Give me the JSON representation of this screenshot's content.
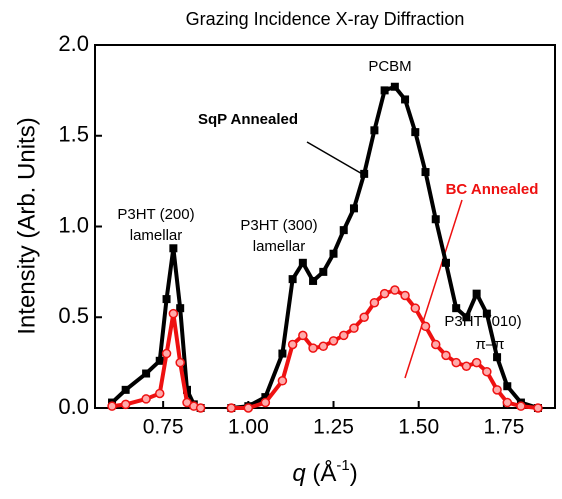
{
  "chart_data": {
    "type": "line",
    "title": "Grazing Incidence X-ray Diffraction",
    "xlabel": [
      "q",
      " (Å",
      "-1",
      ")"
    ],
    "ylabel": "Intensity (Arb. Units)",
    "x": [
      0.6,
      0.64,
      0.7,
      0.74,
      0.76,
      0.78,
      0.8,
      0.82,
      0.84,
      0.86,
      0.9,
      0.95,
      1.0,
      1.05,
      1.1,
      1.13,
      1.16,
      1.19,
      1.22,
      1.25,
      1.28,
      1.31,
      1.34,
      1.37,
      1.4,
      1.43,
      1.46,
      1.49,
      1.52,
      1.55,
      1.58,
      1.61,
      1.64,
      1.67,
      1.7,
      1.73,
      1.76,
      1.8,
      1.85
    ],
    "series": [
      {
        "name": "SqP Annealed",
        "color": "#000000",
        "marker": "square",
        "values": [
          0.03,
          0.1,
          0.19,
          0.26,
          0.6,
          0.88,
          0.55,
          0.1,
          0.02,
          0.0,
          null,
          0.0,
          0.01,
          0.06,
          0.3,
          0.71,
          0.8,
          0.7,
          0.75,
          0.85,
          0.98,
          1.1,
          1.29,
          1.53,
          1.75,
          1.77,
          1.7,
          1.52,
          1.3,
          1.04,
          0.8,
          0.55,
          0.5,
          0.63,
          0.52,
          0.28,
          0.12,
          0.03,
          0.0
        ]
      },
      {
        "name": "BC Annealed",
        "color": "#ee1111",
        "marker": "circle",
        "values": [
          0.01,
          0.02,
          0.05,
          0.08,
          0.3,
          0.52,
          0.25,
          0.03,
          0.01,
          0.0,
          null,
          0.0,
          0.0,
          0.03,
          0.15,
          0.35,
          0.4,
          0.33,
          0.34,
          0.37,
          0.4,
          0.44,
          0.5,
          0.58,
          0.63,
          0.65,
          0.62,
          0.55,
          0.45,
          0.35,
          0.29,
          0.25,
          0.23,
          0.25,
          0.2,
          0.1,
          0.03,
          0.01,
          0.0
        ]
      }
    ],
    "annotations": [
      "PCBM",
      "P3HT (200)",
      "lamellar",
      "P3HT (300)",
      "lamellar",
      "P3HT (010)",
      "π–π"
    ],
    "xlim": [
      0.55,
      1.9
    ],
    "xticks": [
      0.75,
      {
        "value": 1.0,
        "label": "1.00"
      },
      1.25,
      {
        "value": 1.5,
        "label": "1.50"
      },
      1.75
    ],
    "ylim": [
      0,
      2.0
    ],
    "yticks": [
      {
        "value": 0,
        "label": "0.0"
      },
      0.5,
      {
        "value": 1.0,
        "label": "1.0"
      },
      1.5,
      {
        "value": 2.0,
        "label": "2.0"
      }
    ]
  }
}
